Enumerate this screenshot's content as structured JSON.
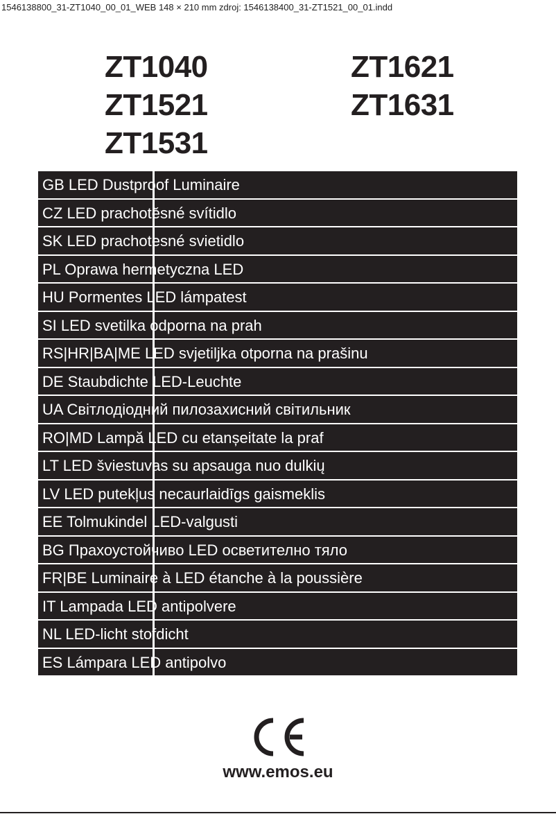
{
  "slug": "1546138800_31-ZT1040_00_01_WEB  148 × 210 mm  zdroj: 1546138400_31-ZT1521_00_01.indd",
  "models": {
    "left": [
      "ZT1040",
      "ZT1521",
      "ZT1531"
    ],
    "right": [
      "ZT1621",
      "ZT1631"
    ]
  },
  "languages": [
    "GB LED Dustproof Luminaire",
    "CZ LED prachotěsné svítidlo",
    "SK LED prachotesné svietidlo",
    "PL Oprawa hermetyczna LED",
    "HU Pormentes LED lámpatest",
    "SI LED svetilka odporna na prah",
    "RS|HR|BA|ME LED svjetiljka otporna na prašinu",
    "DE Staubdichte LED-Leuchte",
    "UA Світлодіодний пилозахисний світильник",
    "RO|MD Lampă LED cu etanșeitate la praf",
    "LT LED šviestuvas su apsauga nuo dulkių",
    "LV LED putekļus necaurlaidīgs gaismeklis",
    "EE Tolmukindel LED-valgusti",
    "BG Прахоустойчиво LED осветително тяло",
    "FR|BE Luminaire à LED étanche à la poussière",
    "IT Lampada LED antipolvere",
    "NL LED-licht stofdicht",
    "ES Lámpara LED antipolvo"
  ],
  "logo": "CE",
  "url": "www.emos.eu",
  "colors": {
    "ink": "#231f20",
    "paper": "#ffffff"
  }
}
